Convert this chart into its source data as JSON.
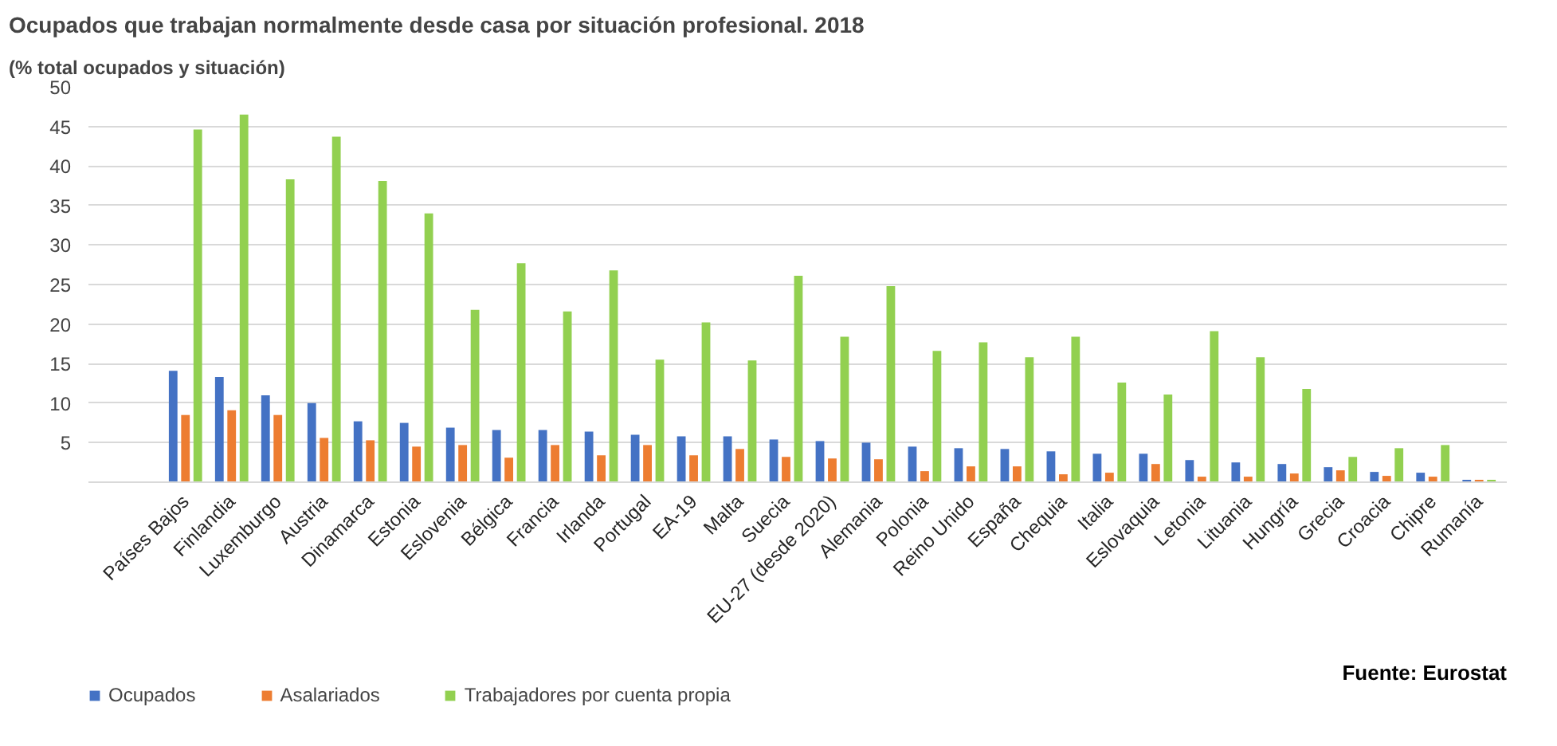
{
  "chart_data": {
    "type": "bar",
    "title": "Ocupados que trabajan normalmente desde casa por situación profesional. 2018",
    "subtitle": "(% total ocupados y situación)",
    "categories": [
      "Países Bajos",
      "Finlandia",
      "Luxemburgo",
      "Austria",
      "Dinamarca",
      "Estonia",
      "Eslovenia",
      "Bélgica",
      "Francia",
      "Irlanda",
      "Portugal",
      "EA-19",
      "Malta",
      "Suecia",
      "EU-27 (desde 2020)",
      "Alemania",
      "Polonia",
      "Reino Unido",
      "España",
      "Chequia",
      "Italia",
      "Eslovaquia",
      "Letonia",
      "Lituania",
      "Hungría",
      "Grecia",
      "Croacia",
      "Chipre",
      "Rumanía"
    ],
    "series": [
      {
        "name": "Ocupados",
        "color": "#4472c4",
        "values": [
          14.1,
          13.3,
          11.0,
          10.0,
          7.7,
          7.5,
          6.9,
          6.6,
          6.6,
          6.4,
          6.0,
          5.8,
          5.8,
          5.4,
          5.2,
          5.0,
          4.5,
          4.3,
          4.2,
          3.9,
          3.6,
          3.6,
          2.8,
          2.5,
          2.3,
          1.9,
          1.3,
          1.2,
          0.3
        ]
      },
      {
        "name": "Asalariados",
        "color": "#ed7d31",
        "values": [
          8.5,
          9.1,
          8.5,
          5.6,
          5.3,
          4.5,
          4.7,
          3.1,
          4.7,
          3.4,
          4.7,
          3.4,
          4.2,
          3.2,
          3.0,
          2.9,
          1.4,
          2.0,
          2.0,
          1.0,
          1.2,
          2.3,
          0.7,
          0.7,
          1.1,
          1.5,
          0.8,
          0.7,
          0.3
        ]
      },
      {
        "name": "Trabajadores por cuenta propia",
        "color": "#92d050",
        "values": [
          44.6,
          46.5,
          38.3,
          43.7,
          38.1,
          34.0,
          21.8,
          27.7,
          21.6,
          26.8,
          15.5,
          20.2,
          15.4,
          26.1,
          18.4,
          24.8,
          16.6,
          17.7,
          15.8,
          18.4,
          12.6,
          11.1,
          19.1,
          15.8,
          11.8,
          3.2,
          4.3,
          4.7,
          0.3
        ]
      }
    ],
    "ylim": [
      0,
      50
    ],
    "yticks": [
      {
        "value": 0,
        "label": null
      },
      5,
      10,
      15,
      20,
      25,
      30,
      35,
      40,
      45,
      50
    ],
    "grid": "y",
    "legend": "bottom left",
    "annotations": [
      "Fuente: Eurostat"
    ]
  }
}
